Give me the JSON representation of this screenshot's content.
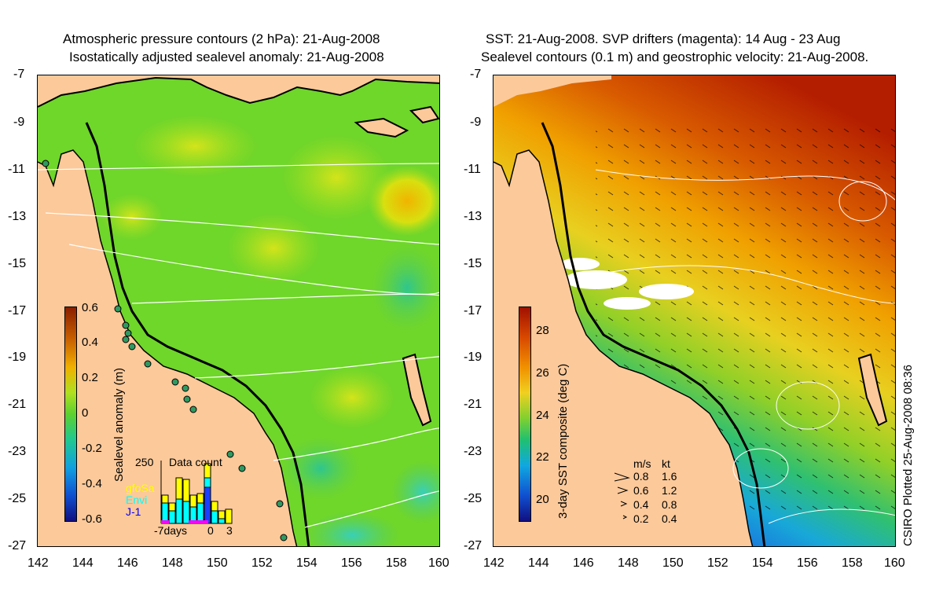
{
  "left_title": {
    "line1": "Atmospheric pressure contours (2 hPa): 21-Aug-2008",
    "line2": "Isostatically adjusted sealevel anomaly: 21-Aug-2008"
  },
  "right_title": {
    "line1": "SST: 21-Aug-2008. SVP drifters (magenta): 14 Aug - 23 Aug",
    "line2": "Sealevel contours (0.1 m) and geostrophic velocity: 21-Aug-2008."
  },
  "axes": {
    "lat_ticks": [
      "-7",
      "-9",
      "-11",
      "-13",
      "-15",
      "-17",
      "-19",
      "-21",
      "-23",
      "-25",
      "-27"
    ],
    "lon_ticks": [
      "142",
      "144",
      "146",
      "148",
      "150",
      "152",
      "154",
      "156",
      "158",
      "160"
    ],
    "lat_range": [
      -27,
      -7
    ],
    "lon_range": [
      142,
      160
    ]
  },
  "left_colorbar": {
    "label": "Sealevel anomaly (m)",
    "ticks": [
      "0.6",
      "0.4",
      "0.2",
      "0",
      "-0.2",
      "-0.4",
      "-0.6"
    ],
    "range": [
      -0.6,
      0.6
    ]
  },
  "right_colorbar": {
    "label": "3-day SST composite (deg C)",
    "ticks": [
      "28",
      "26",
      "24",
      "22",
      "20"
    ],
    "range": [
      19,
      29
    ]
  },
  "data_count": {
    "title": "Data count",
    "ymax_label": "250",
    "x_labels": [
      "-7days",
      "0",
      "3"
    ],
    "legend": [
      {
        "name": "gfoSa",
        "color": "#ffff00"
      },
      {
        "name": "Envi",
        "color": "#00ffff"
      },
      {
        "name": "J-1",
        "color": "#0000ff"
      }
    ]
  },
  "velocity_legend": {
    "header_ms": "m/s",
    "header_kt": "kt",
    "rows": [
      {
        "ms": "0.8",
        "kt": "1.6"
      },
      {
        "ms": "0.6",
        "kt": "1.2"
      },
      {
        "ms": "0.4",
        "kt": "0.8"
      },
      {
        "ms": "0.2",
        "kt": "0.4"
      }
    ]
  },
  "credit": "CSIRO Plotted 25-Aug-2008 08:36",
  "colors": {
    "land": "#fcc99a",
    "sla_base": "#6fd62a",
    "sst_warm": "#b41e00",
    "sst_cool": "#1a55e0"
  }
}
